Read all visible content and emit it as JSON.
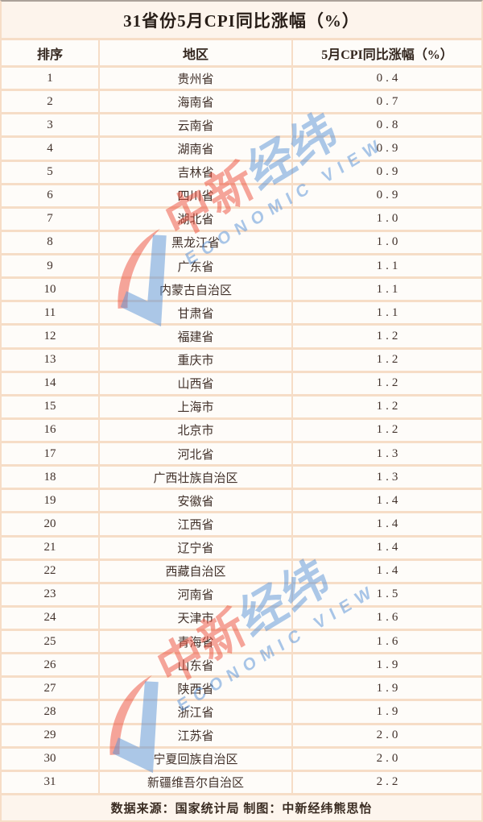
{
  "title": "31省份5月CPI同比涨幅（%）",
  "footer": "数据来源：国家统计局 制图：中新经纬熊思怡",
  "watermark": {
    "zh_red": "中新",
    "zh_blue": "经纬",
    "en": "ECONOMIC VIEW"
  },
  "colors": {
    "border_peach": "#f6ddc7",
    "cell_background": "#fefcf9",
    "band_background": "#fdf4ec",
    "text": "#41312a",
    "watermark_red": "#eb4c3a",
    "watermark_blue": "#5892d6"
  },
  "chart_data": {
    "type": "table",
    "title": "31省份5月CPI同比涨幅（%）",
    "columns": [
      "排序",
      "地区",
      "5月CPI同比涨幅（%）"
    ],
    "rows": [
      [
        "1",
        "贵州省",
        "0.4"
      ],
      [
        "2",
        "海南省",
        "0.7"
      ],
      [
        "3",
        "云南省",
        "0.8"
      ],
      [
        "4",
        "湖南省",
        "0.9"
      ],
      [
        "5",
        "吉林省",
        "0.9"
      ],
      [
        "6",
        "四川省",
        "0.9"
      ],
      [
        "7",
        "湖北省",
        "1.0"
      ],
      [
        "8",
        "黑龙江省",
        "1.0"
      ],
      [
        "9",
        "广东省",
        "1.1"
      ],
      [
        "10",
        "内蒙古自治区",
        "1.1"
      ],
      [
        "11",
        "甘肃省",
        "1.1"
      ],
      [
        "12",
        "福建省",
        "1.2"
      ],
      [
        "13",
        "重庆市",
        "1.2"
      ],
      [
        "14",
        "山西省",
        "1.2"
      ],
      [
        "15",
        "上海市",
        "1.2"
      ],
      [
        "16",
        "北京市",
        "1.2"
      ],
      [
        "17",
        "河北省",
        "1.3"
      ],
      [
        "18",
        "广西壮族自治区",
        "1.3"
      ],
      [
        "19",
        "安徽省",
        "1.4"
      ],
      [
        "20",
        "江西省",
        "1.4"
      ],
      [
        "21",
        "辽宁省",
        "1.4"
      ],
      [
        "22",
        "西藏自治区",
        "1.4"
      ],
      [
        "23",
        "河南省",
        "1.5"
      ],
      [
        "24",
        "天津市",
        "1.6"
      ],
      [
        "25",
        "青海省",
        "1.6"
      ],
      [
        "26",
        "山东省",
        "1.9"
      ],
      [
        "27",
        "陕西省",
        "1.9"
      ],
      [
        "28",
        "浙江省",
        "1.9"
      ],
      [
        "29",
        "江苏省",
        "2.0"
      ],
      [
        "30",
        "宁夏回族自治区",
        "2.0"
      ],
      [
        "31",
        "新疆维吾尔自治区",
        "2.2"
      ]
    ]
  }
}
